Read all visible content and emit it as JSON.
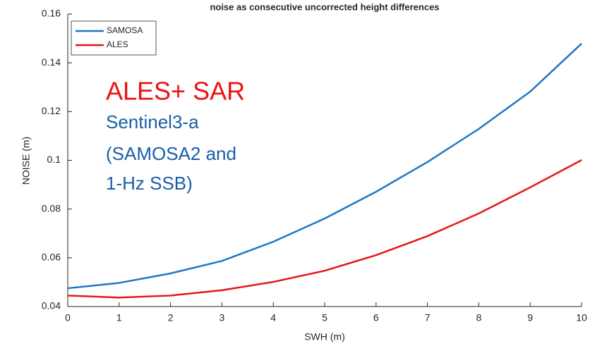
{
  "chart_data": {
    "type": "line",
    "title": "noise as consecutive uncorrected height differences",
    "x_label": "SWH (m)",
    "y_label": "NOISE (m)",
    "x": [
      0,
      1,
      2,
      3,
      4,
      5,
      6,
      7,
      8,
      9,
      10
    ],
    "series": [
      {
        "name": "SAMOSA",
        "color": "#1f77c4",
        "values": [
          0.0475,
          0.0497,
          0.0536,
          0.0587,
          0.0666,
          0.0761,
          0.0871,
          0.0993,
          0.1129,
          0.1282,
          0.1479
        ]
      },
      {
        "name": "ALES",
        "color": "#e8141a",
        "values": [
          0.0445,
          0.0437,
          0.0445,
          0.0467,
          0.0501,
          0.0547,
          0.0611,
          0.0689,
          0.0782,
          0.0889,
          0.1001
        ]
      }
    ],
    "xlim": [
      0,
      10
    ],
    "xticks": [
      0,
      1,
      2,
      3,
      4,
      5,
      6,
      7,
      8,
      9,
      10
    ],
    "ylim": [
      0.04,
      0.16
    ],
    "yticks": [
      0.04,
      0.06,
      0.08,
      0.1,
      0.12,
      0.14,
      0.16
    ],
    "legend": "upper-left",
    "annotations": [
      {
        "text": "ALES+ SAR",
        "color": "#ee1111"
      },
      {
        "text": "Sentinel3-a",
        "color": "#1a5ea8"
      },
      {
        "text": "(SAMOSA2 and",
        "color": "#1a5ea8"
      },
      {
        "text": "1-Hz SSB)",
        "color": "#1a5ea8"
      }
    ]
  }
}
